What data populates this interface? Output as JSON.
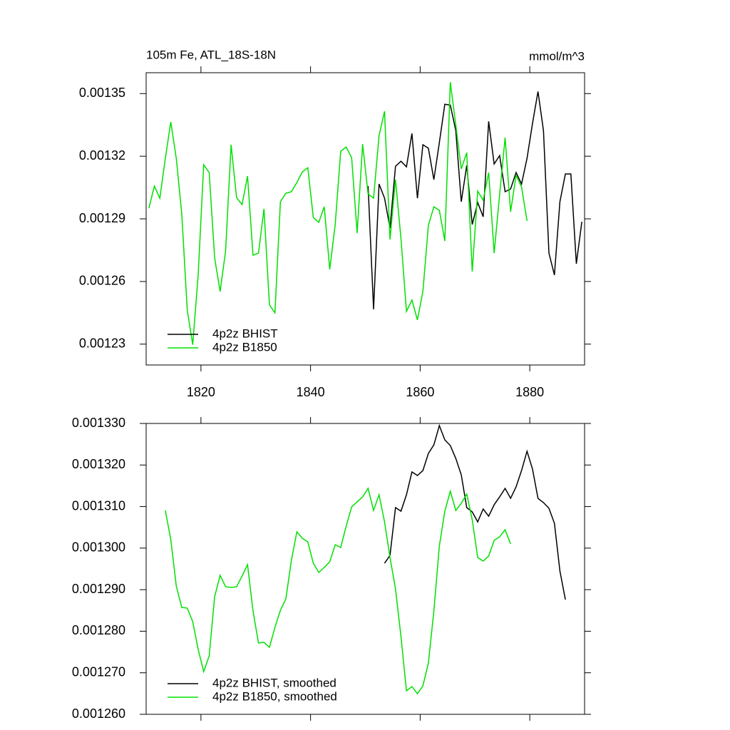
{
  "chart_data": [
    {
      "type": "line",
      "title": "105m Fe, ATL_18S-18N",
      "unit_label": "mmol/m^3",
      "xlim": [
        1810,
        1890
      ],
      "xticks": [
        1820,
        1840,
        1860,
        1880
      ],
      "ylim": [
        0.00122,
        0.00136
      ],
      "yticks": [
        0.00123,
        0.00126,
        0.00129,
        0.00132,
        0.00135
      ],
      "legend": "lower left",
      "series": [
        {
          "name": "4p2z BHIST",
          "color": "#000000",
          "x": [
            1850.5,
            1851.5,
            1852.5,
            1853.5,
            1854.5,
            1855.5,
            1856.5,
            1857.5,
            1858.5,
            1859.5,
            1860.5,
            1861.5,
            1862.5,
            1863.5,
            1864.5,
            1865.5,
            1866.5,
            1867.5,
            1868.5,
            1869.5,
            1870.5,
            1871.5,
            1872.5,
            1873.5,
            1874.5,
            1875.5,
            1876.5,
            1877.5,
            1878.5,
            1879.5,
            1880.5,
            1881.5,
            1882.5,
            1883.5,
            1884.5,
            1885.5,
            1886.5,
            1887.5,
            1888.5,
            1889.5
          ],
          "values": [
            0.0013057,
            0.0012467,
            0.0013067,
            0.0012999,
            0.0012856,
            0.0013152,
            0.0013176,
            0.0013149,
            0.0013309,
            0.0012999,
            0.0013255,
            0.0013238,
            0.0013088,
            0.0013265,
            0.0013449,
            0.0013445,
            0.0013323,
            0.0012982,
            0.0013156,
            0.0012873,
            0.0012978,
            0.001291,
            0.0013367,
            0.0013163,
            0.0013203,
            0.001303,
            0.0013043,
            0.0013122,
            0.0013067,
            0.001319,
            0.0013357,
            0.001351,
            0.0013323,
            0.0012736,
            0.0012631,
            0.0012982,
            0.0013115,
            0.0013115,
            0.0012685,
            0.0012886
          ]
        },
        {
          "name": "4p2z B1850",
          "color": "#00e000",
          "x": [
            1810.5,
            1811.5,
            1812.5,
            1813.5,
            1814.5,
            1815.5,
            1816.5,
            1817.5,
            1818.5,
            1819.5,
            1820.5,
            1821.5,
            1822.5,
            1823.5,
            1824.5,
            1825.5,
            1826.5,
            1827.5,
            1828.5,
            1829.5,
            1830.5,
            1831.5,
            1832.5,
            1833.5,
            1834.5,
            1835.5,
            1836.5,
            1837.5,
            1838.5,
            1839.5,
            1840.5,
            1841.5,
            1842.5,
            1843.5,
            1844.5,
            1845.5,
            1846.5,
            1847.5,
            1848.5,
            1849.5,
            1850.5,
            1851.5,
            1852.5,
            1853.5,
            1854.5,
            1855.5,
            1856.5,
            1857.5,
            1858.5,
            1859.5,
            1860.5,
            1861.5,
            1862.5,
            1863.5,
            1864.5,
            1865.5,
            1866.5,
            1867.5,
            1868.5,
            1869.5,
            1870.5,
            1871.5,
            1872.5,
            1873.5,
            1874.5,
            1875.5,
            1876.5,
            1877.5,
            1878.5,
            1879.5
          ],
          "values": [
            0.0012951,
            0.0013057,
            0.0012999,
            0.001319,
            0.0013364,
            0.001319,
            0.0012924,
            0.0012464,
            0.0012297,
            0.0012634,
            0.0013159,
            0.0013122,
            0.0012713,
            0.0012552,
            0.0012747,
            0.0013255,
            0.0013002,
            0.0012968,
            0.0013105,
            0.0012726,
            0.0012736,
            0.0012948,
            0.0012488,
            0.001245,
            0.0012982,
            0.0013023,
            0.001303,
            0.0013074,
            0.0013125,
            0.0013145,
            0.0012907,
            0.0012883,
            0.0012958,
            0.0012658,
            0.0012873,
            0.0013224,
            0.0013244,
            0.0013193,
            0.0012832,
            0.0013258,
            0.0013019,
            0.0012999,
            0.0013299,
            0.0013415,
            0.0012801,
            0.0013088,
            0.0012805,
            0.0012457,
            0.0012511,
            0.0012416,
            0.0012552,
            0.0012869,
            0.0012958,
            0.0012941,
            0.0012794,
            0.0013555,
            0.001335,
            0.0013139,
            0.0013217,
            0.0012648,
            0.0013033,
            0.0012989,
            0.0013122,
            0.0012736,
            0.0013016,
            0.0013289,
            0.0012934,
            0.0013108,
            0.0013053,
            0.001289
          ]
        }
      ]
    },
    {
      "type": "line",
      "xlim": [
        1810,
        1890
      ],
      "xticks": [
        1820,
        1840,
        1860,
        1880
      ],
      "ylim": [
        0.00126,
        0.00133
      ],
      "yticks": [
        {
          "value": 0.00126,
          "label": "0.001260"
        },
        {
          "value": 0.00127,
          "label": "0.001270"
        },
        {
          "value": 0.00128,
          "label": "0.001280"
        },
        {
          "value": 0.00129,
          "label": "0.001290"
        },
        {
          "value": 0.0013,
          "label": "0.001300"
        },
        {
          "value": 0.00131,
          "label": "0.001310"
        },
        {
          "value": 0.00132,
          "label": "0.001320"
        },
        {
          "value": 0.00133,
          "label": "0.001330"
        }
      ],
      "legend": "lower left",
      "series": [
        {
          "name": "4p2z BHIST, smoothed",
          "color": "#000000",
          "x": [
            1853.5,
            1854.5,
            1855.5,
            1856.5,
            1857.5,
            1858.5,
            1859.5,
            1860.5,
            1861.5,
            1862.5,
            1863.5,
            1864.5,
            1865.5,
            1866.5,
            1867.5,
            1868.5,
            1869.5,
            1870.5,
            1871.5,
            1872.5,
            1873.5,
            1874.5,
            1875.5,
            1876.5,
            1877.5,
            1878.5,
            1879.5,
            1880.5,
            1881.5,
            1882.5,
            1883.5,
            1884.5,
            1885.5,
            1886.5
          ],
          "values": [
            0.00129637,
            0.00129825,
            0.00130975,
            0.00130889,
            0.00131284,
            0.00131833,
            0.00131747,
            0.00131867,
            0.00132279,
            0.00132485,
            0.00132949,
            0.00132605,
            0.00132468,
            0.00132159,
            0.00131764,
            0.00130975,
            0.00130872,
            0.00130632,
            0.00130941,
            0.00130769,
            0.00131044,
            0.00131233,
            0.00131438,
            0.00131198,
            0.00131473,
            0.00131867,
            0.00132331,
            0.00131902,
            0.00131198,
            0.00131095,
            0.00130958,
            0.00130598,
            0.00129448,
            0.00128761
          ]
        },
        {
          "name": "4p2z B1850, smoothed",
          "color": "#00e000",
          "x": [
            1813.5,
            1814.5,
            1815.5,
            1816.5,
            1817.5,
            1818.5,
            1819.5,
            1820.5,
            1821.5,
            1822.5,
            1823.5,
            1824.5,
            1825.5,
            1826.5,
            1827.5,
            1828.5,
            1829.5,
            1830.5,
            1831.5,
            1832.5,
            1833.5,
            1834.5,
            1835.5,
            1836.5,
            1837.5,
            1838.5,
            1839.5,
            1840.5,
            1841.5,
            1842.5,
            1843.5,
            1844.5,
            1845.5,
            1846.5,
            1847.5,
            1848.5,
            1849.5,
            1850.5,
            1851.5,
            1852.5,
            1853.5,
            1854.5,
            1855.5,
            1856.5,
            1857.5,
            1858.5,
            1859.5,
            1860.5,
            1861.5,
            1862.5,
            1863.5,
            1864.5,
            1865.5,
            1866.5,
            1867.5,
            1868.5,
            1869.5,
            1870.5,
            1871.5,
            1872.5,
            1873.5,
            1874.5,
            1875.5,
            1876.5
          ],
          "values": [
            0.00130906,
            0.00130203,
            0.00129088,
            0.00128573,
            0.00128556,
            0.0012823,
            0.0012756,
            0.00127028,
            0.00127406,
            0.0012883,
            0.00129345,
            0.0012907,
            0.00129053,
            0.0012907,
            0.00129328,
            0.00129602,
            0.00128487,
            0.00127715,
            0.00127732,
            0.00127612,
            0.00128092,
            0.00128504,
            0.00128779,
            0.00129705,
            0.00130392,
            0.00130237,
            0.00130151,
            0.00129637,
            0.00129414,
            0.00129534,
            0.00129671,
            0.00130083,
            0.00130014,
            0.00130529,
            0.00130992,
            0.00131112,
            0.00131233,
            0.00131438,
            0.00130906,
            0.00131284,
            0.00130632,
            0.00129774,
            0.00129019,
            0.00127869,
            0.00126565,
            0.00126668,
            0.00126496,
            0.00126685,
            0.00127234,
            0.00128487,
            0.00130048,
            0.00130889,
            0.0013137,
            0.00130906,
            0.00131078,
            0.00131301,
            0.00130683,
            0.00129774,
            0.00129688,
            0.00129808,
            0.00130186,
            0.00130272,
            0.00130443,
            0.001301
          ]
        }
      ]
    }
  ]
}
